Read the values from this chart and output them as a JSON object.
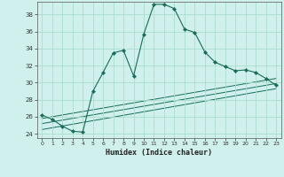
{
  "xlabel": "Humidex (Indice chaleur)",
  "ylabel": "",
  "background_color": "#cff0ec",
  "grid_color": "#aaddcc",
  "line_color": "#1a6b5a",
  "xlim": [
    -0.5,
    23.5
  ],
  "ylim": [
    23.5,
    39.5
  ],
  "yticks": [
    24,
    26,
    28,
    30,
    32,
    34,
    36,
    38
  ],
  "xticks": [
    0,
    1,
    2,
    3,
    4,
    5,
    6,
    7,
    8,
    9,
    10,
    11,
    12,
    13,
    14,
    15,
    16,
    17,
    18,
    19,
    20,
    21,
    22,
    23
  ],
  "main_series": {
    "x": [
      0,
      1,
      2,
      3,
      4,
      5,
      6,
      7,
      8,
      9,
      10,
      11,
      12,
      13,
      14,
      15,
      16,
      17,
      18,
      19,
      20,
      21,
      22,
      23
    ],
    "y": [
      26.2,
      25.7,
      24.9,
      24.3,
      24.2,
      29.0,
      31.2,
      33.5,
      33.8,
      30.8,
      35.7,
      39.2,
      39.2,
      38.7,
      36.3,
      35.9,
      33.6,
      32.4,
      31.9,
      31.4,
      31.5,
      31.2,
      30.5,
      29.7
    ]
  },
  "linear_series": [
    {
      "x": [
        0,
        23
      ],
      "y": [
        24.5,
        29.3
      ]
    },
    {
      "x": [
        0,
        23
      ],
      "y": [
        25.2,
        29.9
      ]
    },
    {
      "x": [
        0,
        23
      ],
      "y": [
        25.8,
        30.5
      ]
    }
  ]
}
